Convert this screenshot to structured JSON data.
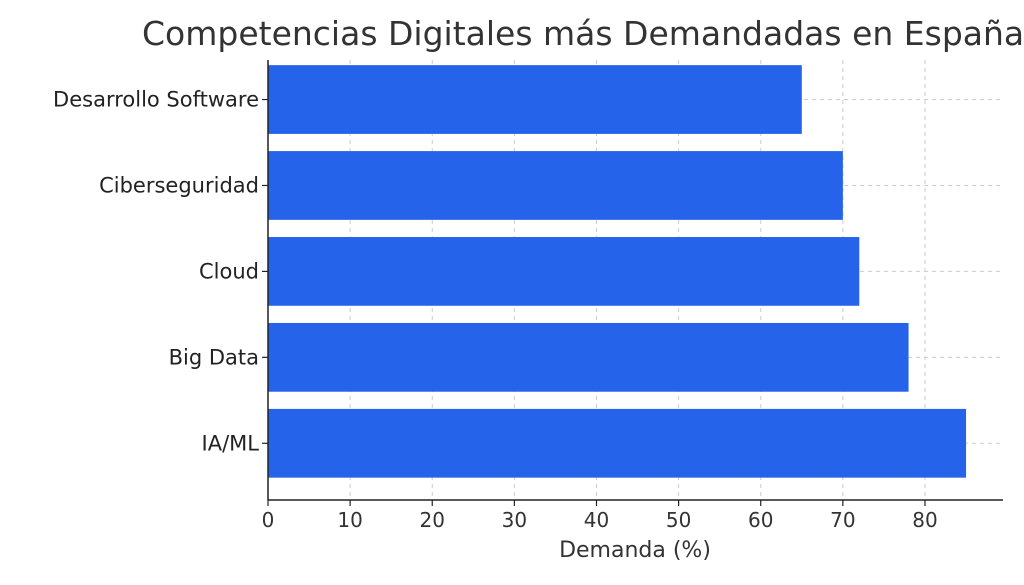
{
  "chart_data": {
    "type": "bar",
    "orientation": "horizontal",
    "title": "Competencias Digitales más Demandadas en España (",
    "xlabel": "Demanda (%)",
    "ylabel": "",
    "categories": [
      "Desarrollo Software",
      "Ciberseguridad",
      "Cloud",
      "Big Data",
      "IA/ML"
    ],
    "values": [
      65,
      70,
      72,
      78,
      85
    ],
    "xlim": [
      0,
      89.5
    ],
    "xticks": [
      0,
      10,
      20,
      30,
      40,
      50,
      60,
      70,
      80
    ],
    "grid": true,
    "bar_color": "#2563eb"
  }
}
